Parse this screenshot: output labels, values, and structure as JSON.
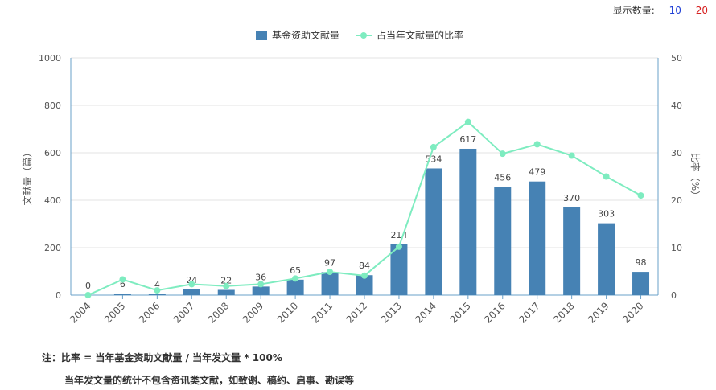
{
  "display_count": {
    "label": "显示数量:",
    "options": [
      "10",
      "20"
    ],
    "colors": [
      "#1f3fd6",
      "#d62020"
    ]
  },
  "notes": {
    "line1": "注：比率 = 当年基金资助文献量 / 当年发文量 * 100%",
    "line2": "当年发文量的统计不包含资讯类文献，如致谢、稿约、启事、勘误等"
  },
  "chart_data": {
    "type": "bar",
    "categories": [
      "2004",
      "2005",
      "2006",
      "2007",
      "2008",
      "2009",
      "2010",
      "2011",
      "2012",
      "2013",
      "2014",
      "2015",
      "2016",
      "2017",
      "2018",
      "2019",
      "2020"
    ],
    "series": [
      {
        "name": "基金资助文献量",
        "type": "bar",
        "axis": "left",
        "color": "#4682b4",
        "values": [
          0,
          6,
          4,
          24,
          22,
          36,
          65,
          97,
          84,
          214,
          534,
          617,
          456,
          479,
          370,
          303,
          98
        ],
        "data_labels": [
          "0",
          "6",
          "4",
          "24",
          "22",
          "36",
          "65",
          "97",
          "84",
          "214",
          "534",
          "617",
          "456",
          "479",
          "370",
          "303",
          "98"
        ]
      },
      {
        "name": "占当年文献量的比率",
        "type": "line",
        "axis": "right",
        "color": "#7eecc0",
        "values": [
          0,
          3.3,
          1.0,
          2.3,
          1.9,
          2.3,
          3.5,
          4.9,
          4.1,
          10.2,
          31.2,
          36.5,
          29.8,
          31.8,
          29.4,
          25.0,
          21.0
        ]
      }
    ],
    "ylabel": "文献量（篇）",
    "ylabel_right": "比率（%）",
    "ylim": [
      0,
      1000
    ],
    "ylim_right": [
      0,
      50
    ],
    "yticks": [
      "0",
      "200",
      "400",
      "600",
      "800",
      "1000"
    ],
    "yticks_right": [
      "0",
      "10",
      "20",
      "30",
      "40",
      "50"
    ],
    "grid": true,
    "legend_position": "top-center"
  }
}
